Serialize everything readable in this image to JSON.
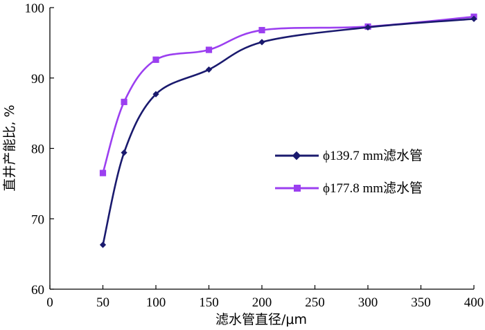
{
  "chart_data": {
    "type": "line",
    "xlabel": "滤水管直径/μm",
    "ylabel": "直井产能比, %",
    "xlim": [
      0,
      400
    ],
    "ylim": [
      60,
      100
    ],
    "xticks": [
      0,
      50,
      100,
      150,
      200,
      250,
      300,
      350,
      400
    ],
    "yticks": [
      60,
      70,
      80,
      90,
      100
    ],
    "grid": false,
    "legend_position": "center-right",
    "series": [
      {
        "name": "ϕ139.7 mm滤水管",
        "color": "#1a1a6e",
        "marker": "diamond",
        "x": [
          50,
          70,
          100,
          150,
          200,
          300,
          400
        ],
        "y": [
          66.3,
          79.4,
          87.7,
          91.2,
          95.1,
          97.2,
          98.4
        ]
      },
      {
        "name": "ϕ177.8 mm滤水管",
        "color": "#9b3ff0",
        "marker": "square",
        "x": [
          50,
          70,
          100,
          150,
          200,
          300,
          400
        ],
        "y": [
          76.5,
          86.6,
          92.6,
          94.0,
          96.8,
          97.3,
          98.7
        ]
      }
    ]
  }
}
